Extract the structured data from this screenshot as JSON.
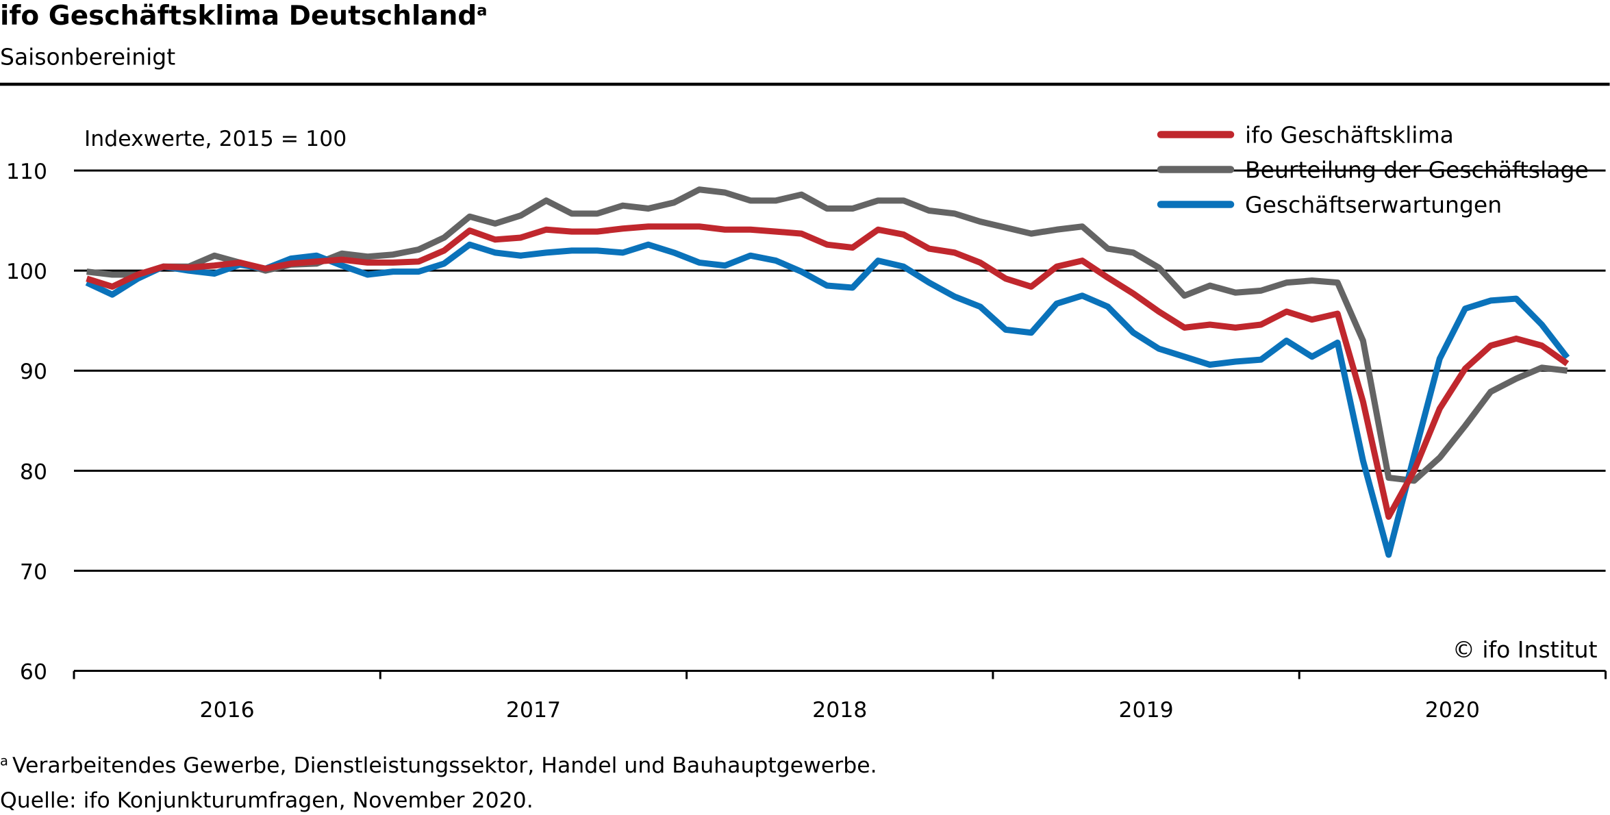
{
  "chart_data": {
    "type": "line",
    "title": "ifo Geschäftsklima Deutschland",
    "title_note": "a",
    "subtitle": "Saisonbereinigt",
    "ylabel": "Indexwerte, 2015 = 100",
    "credit": "© ifo Institut",
    "notes": [
      {
        "marker": "a",
        "text": "Verarbeitendes Gewerbe, Dienstleistungssektor, Handel und Bauhauptgewerbe."
      }
    ],
    "source": "Quelle: ifo Konjunkturumfragen, November 2020.",
    "categories": [
      null,
      null,
      null,
      null,
      null,
      null,
      "2016",
      null,
      null,
      null,
      null,
      null,
      null,
      null,
      null,
      null,
      null,
      null,
      "2017",
      null,
      null,
      null,
      null,
      null,
      null,
      null,
      null,
      null,
      null,
      null,
      "2018",
      null,
      null,
      null,
      null,
      null,
      null,
      null,
      null,
      null,
      null,
      null,
      "2019",
      null,
      null,
      null,
      null,
      null,
      null,
      null,
      null,
      null,
      null,
      null,
      "2020",
      null,
      null,
      null,
      null
    ],
    "ylim": [
      60,
      110
    ],
    "yticks": [
      60,
      70,
      80,
      90,
      100,
      110
    ],
    "grid": true,
    "legend": "top-right",
    "series": [
      {
        "name": "ifo Geschäftsklima",
        "color": "#c0272d",
        "values": [
          99.2,
          98.4,
          99.6,
          100.4,
          100.3,
          100.5,
          100.8,
          100.2,
          100.7,
          100.9,
          101.1,
          100.8,
          100.8,
          100.9,
          102.0,
          104.0,
          103.1,
          103.3,
          104.1,
          103.9,
          103.9,
          104.2,
          104.4,
          104.4,
          104.4,
          104.1,
          104.1,
          103.9,
          103.7,
          102.6,
          102.3,
          104.1,
          103.6,
          102.2,
          101.8,
          100.8,
          99.2,
          98.4,
          100.4,
          101.0,
          99.3,
          97.7,
          95.9,
          94.3,
          94.6,
          94.3,
          94.6,
          95.9,
          95.1,
          95.7,
          86.9,
          75.4,
          80.0,
          86.2,
          90.2,
          92.5,
          93.2,
          92.5,
          90.7
        ]
      },
      {
        "name": "Beurteilung der Geschäftslage",
        "color": "#646464",
        "values": [
          99.9,
          99.6,
          99.6,
          100.4,
          100.4,
          101.5,
          100.8,
          100.0,
          100.6,
          100.7,
          101.7,
          101.4,
          101.6,
          102.1,
          103.3,
          105.4,
          104.7,
          105.5,
          107.0,
          105.7,
          105.7,
          106.5,
          106.2,
          106.8,
          108.1,
          107.8,
          107.0,
          107.0,
          107.6,
          106.2,
          106.2,
          107.0,
          107.0,
          106.0,
          105.7,
          104.9,
          104.3,
          103.7,
          104.1,
          104.4,
          102.2,
          101.8,
          100.3,
          97.5,
          98.5,
          97.8,
          98.0,
          98.8,
          99.0,
          98.8,
          93.0,
          79.3,
          79.0,
          81.3,
          84.5,
          87.9,
          89.2,
          90.3,
          90.0
        ]
      },
      {
        "name": "Geschäftserwartungen",
        "color": "#0a72ba",
        "values": [
          98.8,
          97.6,
          99.2,
          100.4,
          100.0,
          99.7,
          100.6,
          100.2,
          101.2,
          101.5,
          100.5,
          99.6,
          99.9,
          99.9,
          100.7,
          102.6,
          101.8,
          101.5,
          101.8,
          102.0,
          102.0,
          101.8,
          102.6,
          101.8,
          100.8,
          100.5,
          101.5,
          101.0,
          99.9,
          98.5,
          98.3,
          101.0,
          100.4,
          98.8,
          97.4,
          96.4,
          94.1,
          93.8,
          96.7,
          97.5,
          96.4,
          93.8,
          92.2,
          91.4,
          90.6,
          90.9,
          91.1,
          93.0,
          91.4,
          92.8,
          81.0,
          71.6,
          81.5,
          91.2,
          96.2,
          97.0,
          97.2,
          94.6,
          91.3
        ]
      }
    ]
  }
}
